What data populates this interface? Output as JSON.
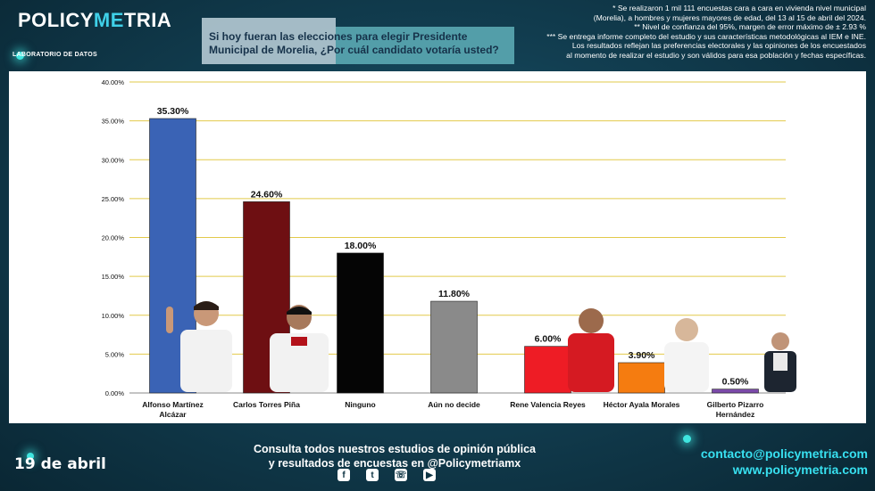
{
  "brand": {
    "logo_part1": "POLICY",
    "logo_part2": "ME",
    "logo_part3": "TRIA",
    "subtitle": "LABORATORIO DE DATOS"
  },
  "question": "Si hoy fueran las elecciones para elegir Presidente Municipal de Morelia, ¿Por cuál candidato votaría usted?",
  "notes": [
    "* Se realizaron 1 mil 111 encuestas cara a cara en vivienda nivel municipal",
    "(Morelia), a hombres y mujeres mayores de edad, del 13 al 15 de abril del 2024.",
    "** Nivel de confianza del 95%, margen de error máximo de ± 2.93 %",
    "*** Se entrega informe completo del estudio y sus características metodológicas al IEM e INE.",
    "Los resultados reflejan las preferencias electorales y las opiniones de los encuestados",
    "al momento de realizar el estudio y son válidos para esa población y fechas específicas."
  ],
  "chart_data": {
    "type": "bar",
    "categories": [
      "Alfonso Martínez Alcázar",
      "Carlos Torres Piña",
      "Ninguno",
      "Aún no decide",
      "Rene Valencia Reyes",
      "Héctor Ayala Morales",
      "Gilberto Pizarro Hernández"
    ],
    "values": [
      35.3,
      24.6,
      18.0,
      11.8,
      6.0,
      3.9,
      0.5
    ],
    "value_labels": [
      "35.30%",
      "24.60%",
      "18.00%",
      "11.80%",
      "6.00%",
      "3.90%",
      "0.50%"
    ],
    "colors": [
      "#3a63b5",
      "#6e0f12",
      "#050505",
      "#8a8a8a",
      "#ee1c25",
      "#f57c10",
      "#7b4aa8"
    ],
    "ylim": [
      0,
      40
    ],
    "yticks": [
      "0.00%",
      "5.00%",
      "10.00%",
      "15.00%",
      "20.00%",
      "25.00%",
      "30.00%",
      "35.00%",
      "40.00%"
    ],
    "grid": true,
    "title": "",
    "xlabel": "",
    "ylabel": ""
  },
  "footer": {
    "date": "19 de abril",
    "consult_line1": "Consulta todos nuestros estudios de opinión pública",
    "consult_line2": "y resultados de encuestas en @Policymetriamx",
    "email": "contacto@policymetria.com",
    "web": "www.policymetria.com"
  },
  "socials": [
    "facebook-icon",
    "twitter-icon",
    "whatsapp-icon",
    "youtube-icon"
  ]
}
